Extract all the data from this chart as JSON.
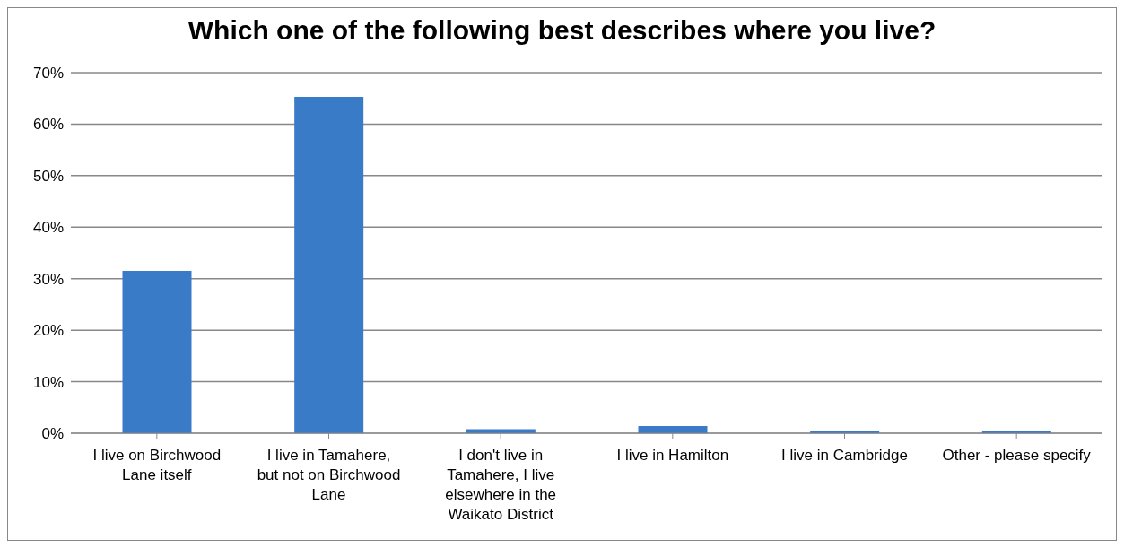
{
  "chart_data": {
    "type": "bar",
    "title": "Which one of the following best describes where you live?",
    "categories": [
      "I live on Birchwood Lane itself",
      "I live in Tamahere, but not on Birchwood Lane",
      "I don't live in Tamahere, I live elsewhere in the Waikato District",
      "I live in Hamilton",
      "I live in Cambridge",
      "Other - please specify"
    ],
    "values": [
      31.5,
      65.3,
      0.8,
      1.4,
      0.4,
      0.4
    ],
    "color": "#3a7bc8",
    "ylim": [
      0,
      70
    ],
    "yticks": [
      {
        "value": 0,
        "label": "0%"
      },
      {
        "value": 10,
        "label": "10%"
      },
      {
        "value": 20,
        "label": "20%"
      },
      {
        "value": 30,
        "label": "30%"
      },
      {
        "value": 40,
        "label": "40%"
      },
      {
        "value": 50,
        "label": "50%"
      },
      {
        "value": 60,
        "label": "60%"
      },
      {
        "value": 70,
        "label": "70%"
      }
    ],
    "grid": "y",
    "legend": false
  }
}
